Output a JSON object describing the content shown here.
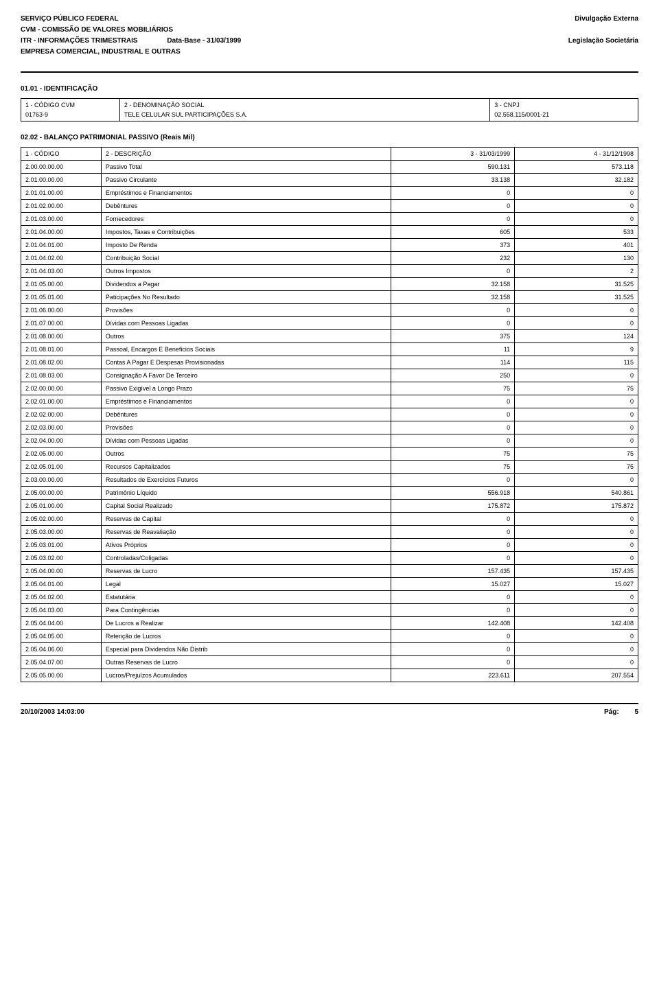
{
  "header": {
    "line1": "SERVIÇO PÚBLICO FEDERAL",
    "line2": "CVM - COMISSÃO DE VALORES MOBILIÁRIOS",
    "line3_left": "ITR - INFORMAÇÕES TRIMESTRAIS",
    "line3_center": "Data-Base - 31/03/1999",
    "line4": "EMPRESA COMERCIAL, INDUSTRIAL E OUTRAS",
    "right1": "Divulgação Externa",
    "right2": "Legislação Societária"
  },
  "identificacao": {
    "section_label": "01.01 - IDENTIFICAÇÃO",
    "col1_label": "1 - CÓDIGO CVM",
    "col2_label": "2 - DENOMINAÇÃO SOCIAL",
    "col3_label": "3 - CNPJ",
    "col1_value": "01763-9",
    "col2_value": "TELE CELULAR SUL PARTICIPAÇÕES S.A.",
    "col3_value": "02.558.115/0001-21"
  },
  "balance": {
    "section_label": "02.02 - BALANÇO PATRIMONIAL PASSIVO (Reais Mil)",
    "header_code": "1 - CÓDIGO",
    "header_desc": "2 - DESCRIÇÃO",
    "header_v1": "3 - 31/03/1999",
    "header_v2": "4 - 31/12/1998",
    "rows": [
      {
        "code": "2.00.00.00.00",
        "desc": "Passivo Total",
        "v1": "590.131",
        "v2": "573.118"
      },
      {
        "code": "2.01.00.00.00",
        "desc": "Passivo Circulante",
        "v1": "33.138",
        "v2": "32.182"
      },
      {
        "code": "2.01.01.00.00",
        "desc": "Empréstimos e Financiamentos",
        "v1": "0",
        "v2": "0"
      },
      {
        "code": "2.01.02.00.00",
        "desc": "Debêntures",
        "v1": "0",
        "v2": "0"
      },
      {
        "code": "2.01.03.00.00",
        "desc": "Fornecedores",
        "v1": "0",
        "v2": "0"
      },
      {
        "code": "2.01.04.00.00",
        "desc": "Impostos, Taxas e Contribuições",
        "v1": "605",
        "v2": "533"
      },
      {
        "code": "2.01.04.01.00",
        "desc": "Imposto De Renda",
        "v1": "373",
        "v2": "401"
      },
      {
        "code": "2.01.04.02.00",
        "desc": "Contribuição Social",
        "v1": "232",
        "v2": "130"
      },
      {
        "code": "2.01.04.03.00",
        "desc": "Outros Impostos",
        "v1": "0",
        "v2": "2"
      },
      {
        "code": "2.01.05.00.00",
        "desc": "Dividendos a Pagar",
        "v1": "32.158",
        "v2": "31.525"
      },
      {
        "code": "2.01.05.01.00",
        "desc": "Paticipações No Resultado",
        "v1": "32.158",
        "v2": "31.525"
      },
      {
        "code": "2.01.06.00.00",
        "desc": "Provisões",
        "v1": "0",
        "v2": "0"
      },
      {
        "code": "2.01.07.00.00",
        "desc": "Dívidas com Pessoas Ligadas",
        "v1": "0",
        "v2": "0"
      },
      {
        "code": "2.01.08.00.00",
        "desc": "Outros",
        "v1": "375",
        "v2": "124"
      },
      {
        "code": "2.01.08.01.00",
        "desc": "Passoal, Encargos E Beneficios Sociais",
        "v1": "11",
        "v2": "9"
      },
      {
        "code": "2.01.08.02.00",
        "desc": "Contas A Pagar E Despesas Provisionadas",
        "v1": "114",
        "v2": "115"
      },
      {
        "code": "2.01.08.03.00",
        "desc": "Consignação A Favor De Terceiro",
        "v1": "250",
        "v2": "0"
      },
      {
        "code": "2.02.00.00.00",
        "desc": "Passivo Exigível a Longo Prazo",
        "v1": "75",
        "v2": "75"
      },
      {
        "code": "2.02.01.00.00",
        "desc": "Empréstimos e Financiamentos",
        "v1": "0",
        "v2": "0"
      },
      {
        "code": "2.02.02.00.00",
        "desc": "Debêntures",
        "v1": "0",
        "v2": "0"
      },
      {
        "code": "2.02.03.00.00",
        "desc": "Provisões",
        "v1": "0",
        "v2": "0"
      },
      {
        "code": "2.02.04.00.00",
        "desc": "Dívidas com Pessoas Ligadas",
        "v1": "0",
        "v2": "0"
      },
      {
        "code": "2.02.05.00.00",
        "desc": "Outros",
        "v1": "75",
        "v2": "75"
      },
      {
        "code": "2.02.05.01.00",
        "desc": "Recursos Capitalizados",
        "v1": "75",
        "v2": "75"
      },
      {
        "code": "2.03.00.00.00",
        "desc": "Resultados de Exercícios Futuros",
        "v1": "0",
        "v2": "0"
      },
      {
        "code": "2.05.00.00.00",
        "desc": "Patrimônio Líquido",
        "v1": "556.918",
        "v2": "540.861"
      },
      {
        "code": "2.05.01.00.00",
        "desc": "Capital Social Realizado",
        "v1": "175.872",
        "v2": "175.872"
      },
      {
        "code": "2.05.02.00.00",
        "desc": "Reservas de Capital",
        "v1": "0",
        "v2": "0"
      },
      {
        "code": "2.05.03.00.00",
        "desc": "Reservas de Reavaliação",
        "v1": "0",
        "v2": "0"
      },
      {
        "code": "2.05.03.01.00",
        "desc": "Ativos Próprios",
        "v1": "0",
        "v2": "0"
      },
      {
        "code": "2.05.03.02.00",
        "desc": "Controladas/Coligadas",
        "v1": "0",
        "v2": "0"
      },
      {
        "code": "2.05.04.00.00",
        "desc": "Reservas de Lucro",
        "v1": "157.435",
        "v2": "157.435"
      },
      {
        "code": "2.05.04.01.00",
        "desc": "Legal",
        "v1": "15.027",
        "v2": "15.027"
      },
      {
        "code": "2.05.04.02.00",
        "desc": "Estatutária",
        "v1": "0",
        "v2": "0"
      },
      {
        "code": "2.05.04.03.00",
        "desc": "Para Contingências",
        "v1": "0",
        "v2": "0"
      },
      {
        "code": "2.05.04.04.00",
        "desc": "De Lucros a Realizar",
        "v1": "142.408",
        "v2": "142.408"
      },
      {
        "code": "2.05.04.05.00",
        "desc": "Retenção de Lucros",
        "v1": "0",
        "v2": "0"
      },
      {
        "code": "2.05.04.06.00",
        "desc": "Especial para Dividendos Não Distrib",
        "v1": "0",
        "v2": "0"
      },
      {
        "code": "2.05.04.07.00",
        "desc": "Outras Reservas de Lucro",
        "v1": "0",
        "v2": "0"
      },
      {
        "code": "2.05.05.00.00",
        "desc": "Lucros/Prejuízos Acumulados",
        "v1": "223.611",
        "v2": "207.554"
      }
    ]
  },
  "footer": {
    "timestamp": "20/10/2003 14:03:00",
    "page_label": "Pág:",
    "page_num": "5"
  }
}
